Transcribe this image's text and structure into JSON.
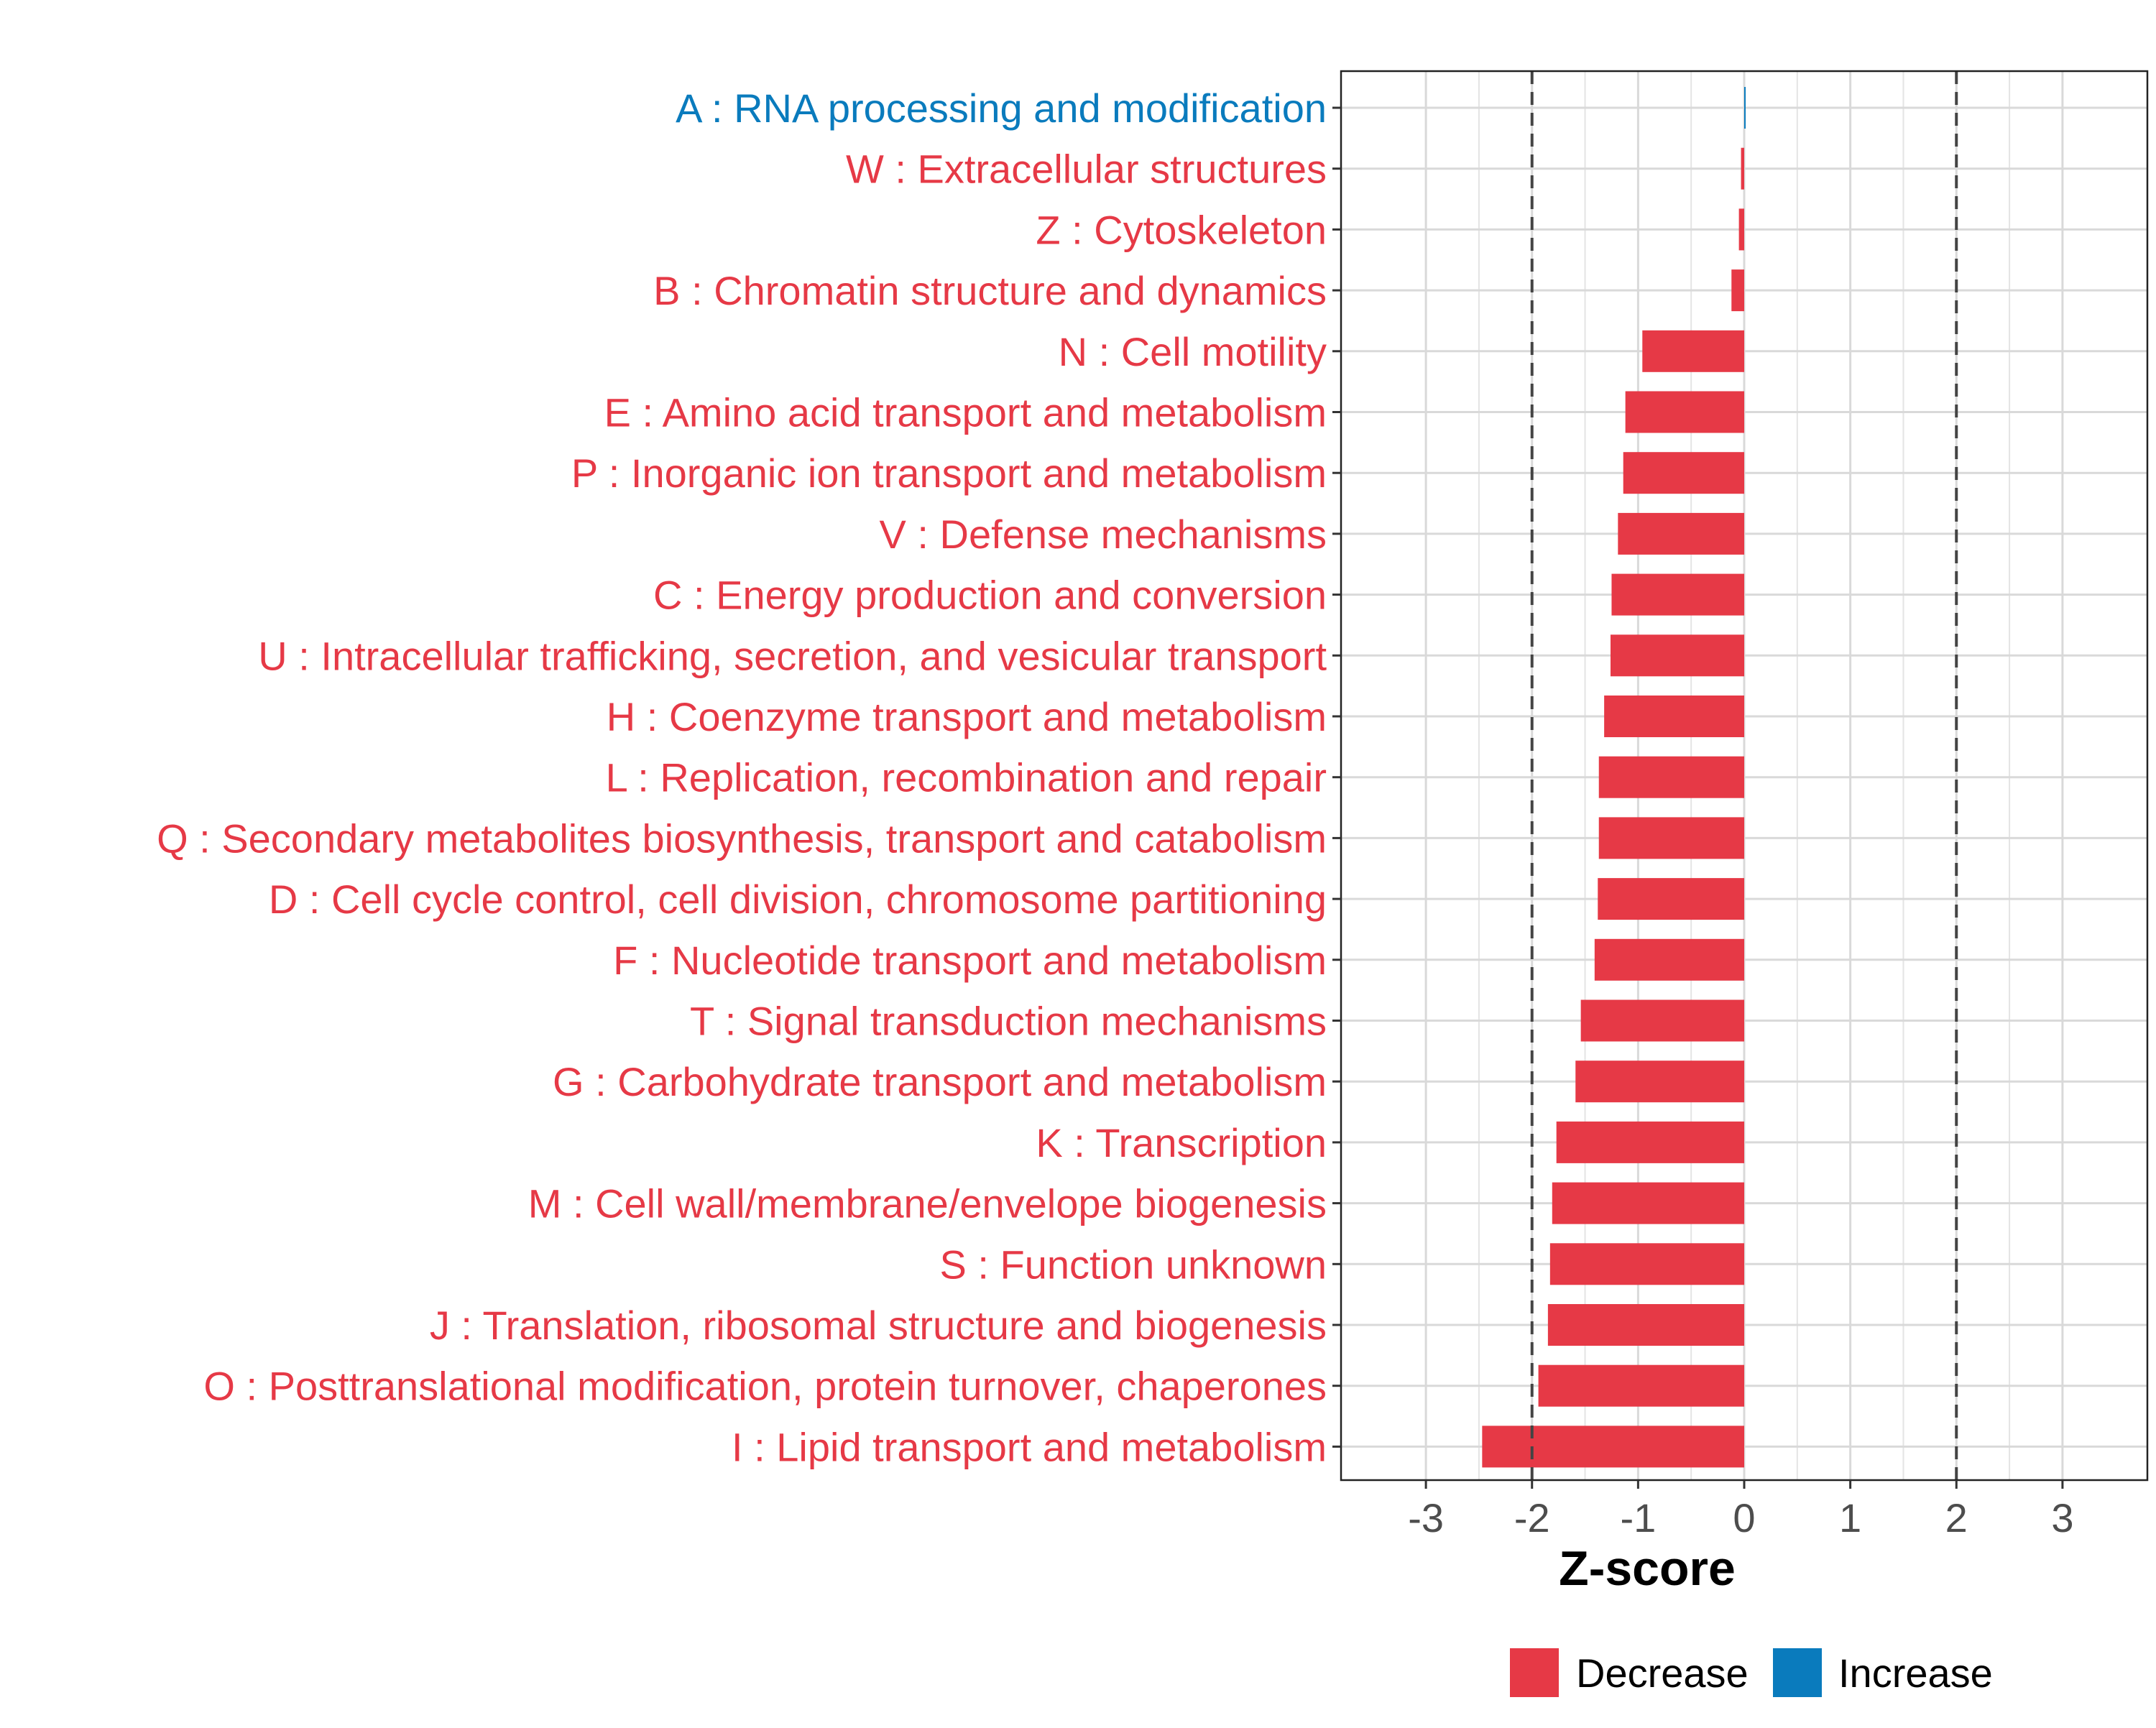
{
  "chart_data": {
    "type": "bar",
    "orientation": "horizontal",
    "title": "",
    "xlabel": "Z-score",
    "ylabel": "",
    "xlim": [
      -3.8,
      3.8
    ],
    "xticks": [
      -3,
      -2,
      -1,
      0,
      1,
      2,
      3
    ],
    "tick_labels": [
      "-3",
      "-2",
      "-1",
      "0",
      "1",
      "2",
      "3"
    ],
    "reference_lines": [
      -2,
      2
    ],
    "grid": true,
    "legend_position": "bottom",
    "colors": {
      "Decrease": "#e63946",
      "Increase": "#0a7bbd"
    },
    "categories": [
      "A : RNA processing and modification",
      "W : Extracellular structures",
      "Z : Cytoskeleton",
      "B : Chromatin structure and dynamics",
      "N : Cell motility",
      "E : Amino acid transport and metabolism",
      "P : Inorganic ion transport and metabolism",
      "V : Defense mechanisms",
      "C : Energy production and conversion",
      "U : Intracellular trafficking, secretion, and vesicular transport",
      "H : Coenzyme transport and metabolism",
      "L : Replication, recombination and repair",
      "Q : Secondary metabolites biosynthesis, transport and catabolism",
      "D : Cell cycle control, cell division, chromosome partitioning",
      "F : Nucleotide transport and metabolism",
      "T : Signal transduction mechanisms",
      "G : Carbohydrate transport and metabolism",
      "K : Transcription",
      "M : Cell wall/membrane/envelope biogenesis",
      "S : Function unknown",
      "J : Translation, ribosomal structure and biogenesis",
      "O : Posttranslational modification, protein turnover, chaperones",
      "I : Lipid transport and metabolism"
    ],
    "values": [
      0.01,
      -0.03,
      -0.05,
      -0.12,
      -0.96,
      -1.12,
      -1.14,
      -1.19,
      -1.25,
      -1.26,
      -1.32,
      -1.37,
      -1.37,
      -1.38,
      -1.41,
      -1.54,
      -1.59,
      -1.77,
      -1.81,
      -1.83,
      -1.85,
      -1.94,
      -2.47
    ],
    "groups": [
      "Increase",
      "Decrease",
      "Decrease",
      "Decrease",
      "Decrease",
      "Decrease",
      "Decrease",
      "Decrease",
      "Decrease",
      "Decrease",
      "Decrease",
      "Decrease",
      "Decrease",
      "Decrease",
      "Decrease",
      "Decrease",
      "Decrease",
      "Decrease",
      "Decrease",
      "Decrease",
      "Decrease",
      "Decrease",
      "Decrease"
    ],
    "legend": [
      {
        "label": "Decrease"
      },
      {
        "label": "Increase"
      }
    ]
  }
}
